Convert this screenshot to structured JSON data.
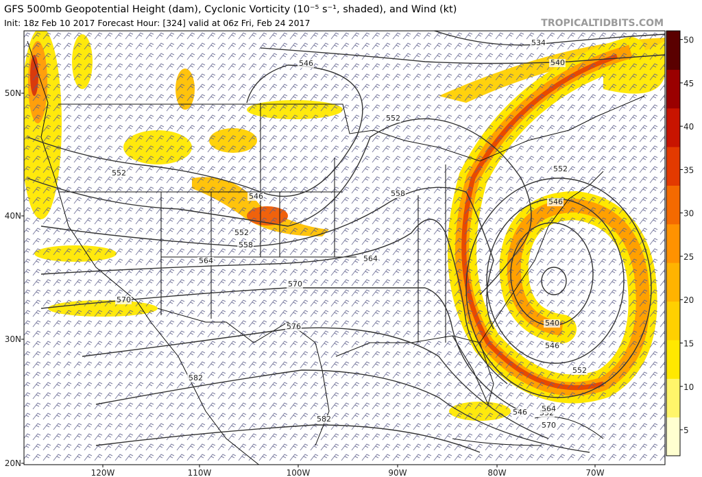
{
  "header": {
    "title": "GFS 500mb Geopotential Height (dam), Cyclonic Vorticity (10⁻⁵ s⁻¹, shaded), and Wind (kt)",
    "subtitle": "Init: 18z Feb 10 2017   Forecast Hour: [324]   valid at 06z Fri, Feb 24 2017",
    "source": "TROPICALTIDBITS.COM"
  },
  "map": {
    "latitude_labels": [
      "50N",
      "40N",
      "30N",
      "20N"
    ],
    "longitude_labels": [
      "120W",
      "110W",
      "100W",
      "90W",
      "80W",
      "70W"
    ],
    "contour_labels": [
      "534",
      "540",
      "546",
      "552",
      "552",
      "546",
      "552",
      "546",
      "552",
      "558",
      "558",
      "564",
      "564",
      "570",
      "570",
      "576",
      "582",
      "582",
      "540",
      "546",
      "552",
      "552",
      "546",
      "564",
      "570"
    ]
  },
  "colorbar": {
    "range": [
      2,
      51
    ],
    "ticks": [
      5,
      10,
      15,
      20,
      25,
      30,
      35,
      40,
      45,
      50
    ],
    "colors": [
      "#ffffd0",
      "#fff56a",
      "#ffe800",
      "#ffd000",
      "#ffb300",
      "#ff9200",
      "#f46a00",
      "#e33a00",
      "#c81400",
      "#9a0000",
      "#5a0000"
    ]
  }
}
